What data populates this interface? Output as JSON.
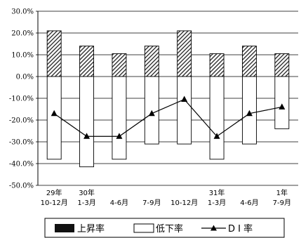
{
  "chart_data": {
    "type": "bar",
    "categories": [
      [
        "29年",
        "10-12月"
      ],
      [
        "30年",
        "1-3月"
      ],
      [
        "",
        "4-6月"
      ],
      [
        "",
        "7-9月"
      ],
      [
        "",
        "10-12月"
      ],
      [
        "31年",
        "1-3月"
      ],
      [
        "",
        "4-6月"
      ],
      [
        "1年",
        "7-9月"
      ]
    ],
    "ylim": [
      -50,
      30
    ],
    "yticks": [
      30,
      20,
      10,
      0,
      -10,
      -20,
      -30,
      -40,
      -50
    ],
    "ytick_labels": [
      "30.0%",
      "20.0%",
      "10.0%",
      "0.0%",
      "-10.0%",
      "-20.0%",
      "-30.0%",
      "-40.0%",
      "-50.0%"
    ],
    "grid": true,
    "legend_position": "bottom",
    "series": [
      {
        "name": "上昇率",
        "kind": "bar",
        "values": [
          21,
          14,
          10.5,
          14,
          21,
          10.5,
          14,
          10.5
        ]
      },
      {
        "name": "低下率",
        "kind": "bar",
        "values": [
          -38,
          -41.5,
          -38,
          -31,
          -31,
          -38,
          -31,
          -24
        ]
      },
      {
        "name": "DI率",
        "kind": "line",
        "values": [
          -17,
          -27.5,
          -27.5,
          -17,
          -10.5,
          -27.5,
          -17,
          -14
        ]
      }
    ],
    "colors": {
      "rise_fill": "#222222",
      "fall_fill": "#ffffff",
      "line": "#000000",
      "grid": "#000000"
    }
  },
  "legend": {
    "items": [
      {
        "label": "上昇率",
        "marker": "filled-box"
      },
      {
        "label": "低下率",
        "marker": "empty-box"
      },
      {
        "label": "D I 率",
        "marker": "line-triangle"
      }
    ]
  }
}
